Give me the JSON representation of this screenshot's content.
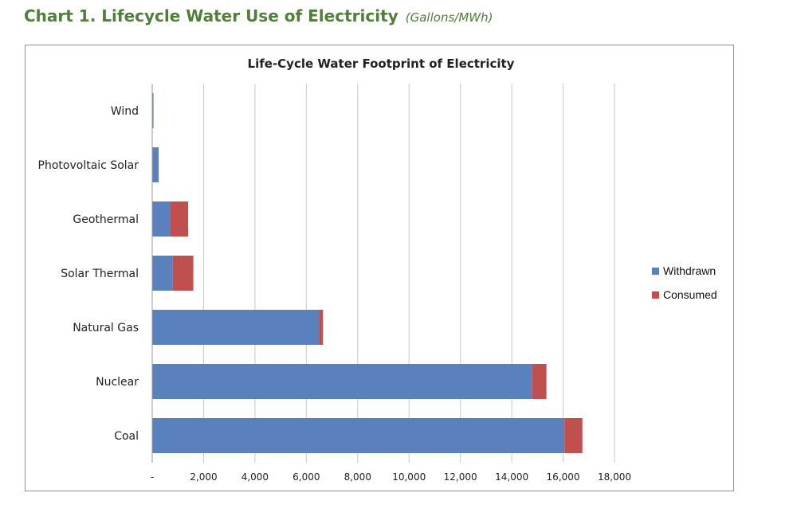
{
  "heading": {
    "title": "Chart 1. Lifecycle Water Use of Electricity",
    "unit": "(Gallons/MWh)"
  },
  "colors": {
    "withdrawn": "#5b80be",
    "consumed": "#c0504d",
    "heading": "#4f7f3a",
    "grid": "#c8c8c8"
  },
  "chart_data": {
    "type": "bar",
    "orientation": "horizontal",
    "stacked": true,
    "title": "Life-Cycle Water Footprint of Electricity",
    "categories": [
      "Wind",
      "Photovoltaic Solar",
      "Geothermal",
      "Solar Thermal",
      "Natural Gas",
      "Nuclear",
      "Coal"
    ],
    "series": [
      {
        "name": "Withdrawn",
        "values": [
          50,
          250,
          700,
          800,
          6500,
          14800,
          16050
        ]
      },
      {
        "name": "Consumed",
        "values": [
          0,
          0,
          700,
          800,
          150,
          550,
          700
        ]
      }
    ],
    "x_ticks": [
      "-",
      "2,000",
      "4,000",
      "6,000",
      "8,000",
      "10,000",
      "12,000",
      "14,000",
      "16,000",
      "18,000"
    ],
    "xlim": [
      0,
      18000
    ],
    "grid": true,
    "legend": "right"
  }
}
